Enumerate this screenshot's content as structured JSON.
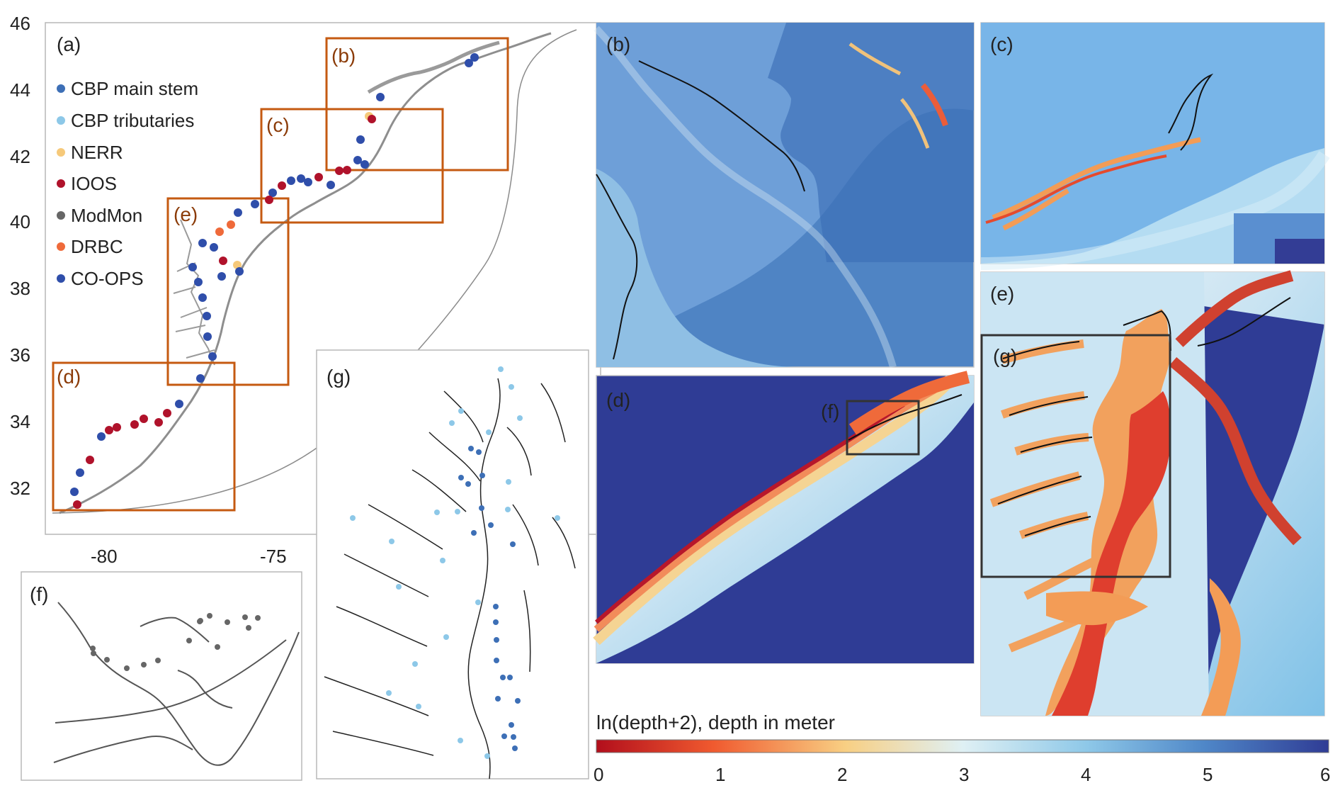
{
  "panels": {
    "a": "(a)",
    "b": "(b)",
    "c": "(c)",
    "d": "(d)",
    "e": "(e)",
    "f": "(f)",
    "g": "(g)",
    "inset_b": "(b)",
    "inset_c": "(c)",
    "inset_d": "(d)",
    "inset_e": "(e)",
    "inset_f": "(f)",
    "inset_g": "(g)"
  },
  "axes": {
    "y_ticks": [
      "46",
      "44",
      "42",
      "40",
      "38",
      "36",
      "34",
      "32"
    ],
    "x_ticks": [
      "-80",
      "-75"
    ]
  },
  "legend": [
    {
      "label": "CBP main stem",
      "color": "#3d6fb6"
    },
    {
      "label": "CBP tributaries",
      "color": "#8dc8e8"
    },
    {
      "label": "NERR",
      "color": "#f6c97a"
    },
    {
      "label": "IOOS",
      "color": "#b0122b"
    },
    {
      "label": "ModMon",
      "color": "#666666"
    },
    {
      "label": "DRBC",
      "color": "#ef6a3a"
    },
    {
      "label": "CO-OPS",
      "color": "#2f4eaa"
    }
  ],
  "colorbar": {
    "title": "ln(depth+2), depth in meter",
    "ticks": [
      "0",
      "1",
      "2",
      "3",
      "4",
      "5",
      "6"
    ]
  },
  "colors": {
    "box_brown": "#c55a11",
    "box_dark": "#333333"
  }
}
